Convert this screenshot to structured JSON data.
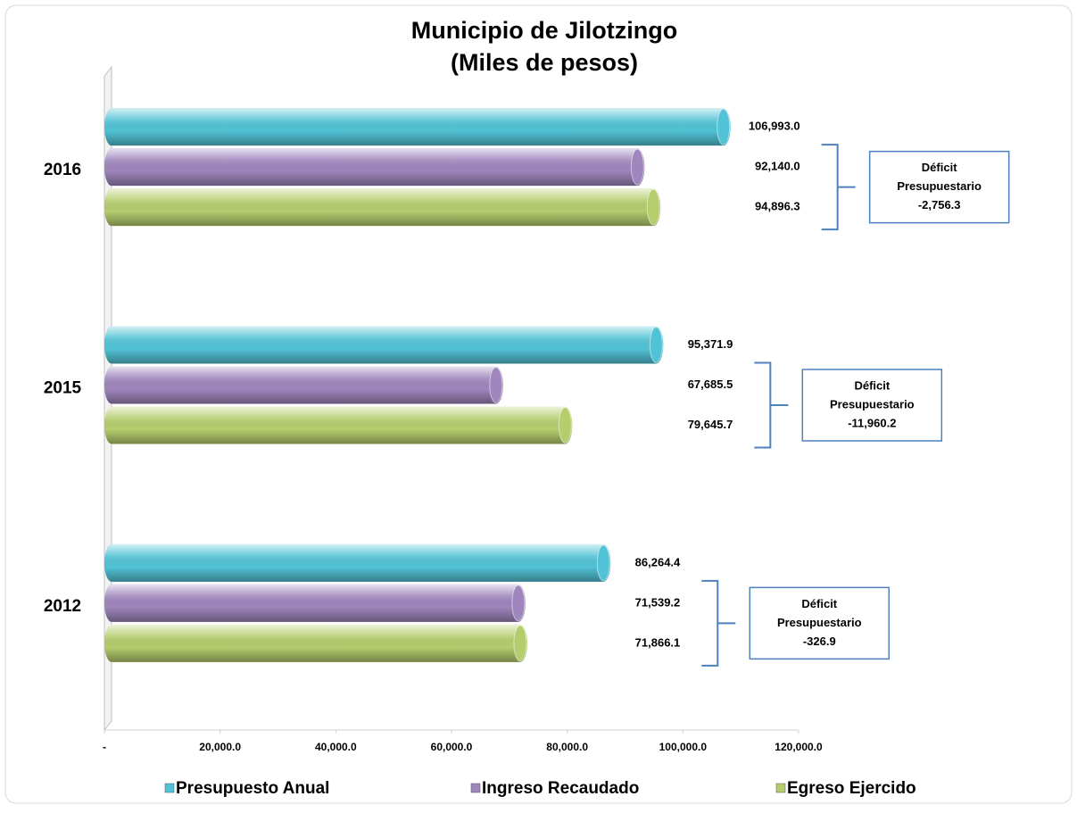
{
  "chart_data": {
    "type": "bar",
    "orientation": "horizontal",
    "title": "Municipio de Jilotzingo",
    "subtitle": "(Miles de pesos)",
    "categories": [
      "2016",
      "2015",
      "2012"
    ],
    "series": [
      {
        "name": "Presupuesto Anual",
        "color": "#52c3d6",
        "values": [
          106993.0,
          95371.9,
          86264.4
        ],
        "value_labels": [
          "106,993.0",
          "95,371.9",
          "86,264.4"
        ]
      },
      {
        "name": "Ingreso Recaudado",
        "color": "#9f86bd",
        "values": [
          92140.0,
          67685.5,
          71539.2
        ],
        "value_labels": [
          "92,140.0",
          "67,685.5",
          "71,539.2"
        ]
      },
      {
        "name": "Egreso Ejercido",
        "color": "#b6cd6e",
        "values": [
          94896.3,
          79645.7,
          71866.1
        ],
        "value_labels": [
          "94,896.3",
          "79,645.7",
          "71,866.1"
        ]
      }
    ],
    "xlim": [
      0,
      120000
    ],
    "xticks": [
      {
        "value": 0,
        "label": "-"
      },
      {
        "value": 20000,
        "label": "20,000.0"
      },
      {
        "value": 40000,
        "label": "40,000.0"
      },
      {
        "value": 60000,
        "label": "60,000.0"
      },
      {
        "value": 80000,
        "label": "80,000.0"
      },
      {
        "value": 100000,
        "label": "100,000.0"
      },
      {
        "value": 120000,
        "label": "120,000.0"
      }
    ],
    "grid": false,
    "legend": "bottom",
    "annotations": [
      {
        "lines": [
          "Déficit",
          "Presupuestario",
          "-2,756.3"
        ]
      },
      {
        "lines": [
          "Déficit",
          "Presupuestario",
          "-11,960.2"
        ]
      },
      {
        "lines": [
          "Déficit",
          "Presupuestario",
          "-326.9"
        ]
      }
    ]
  }
}
